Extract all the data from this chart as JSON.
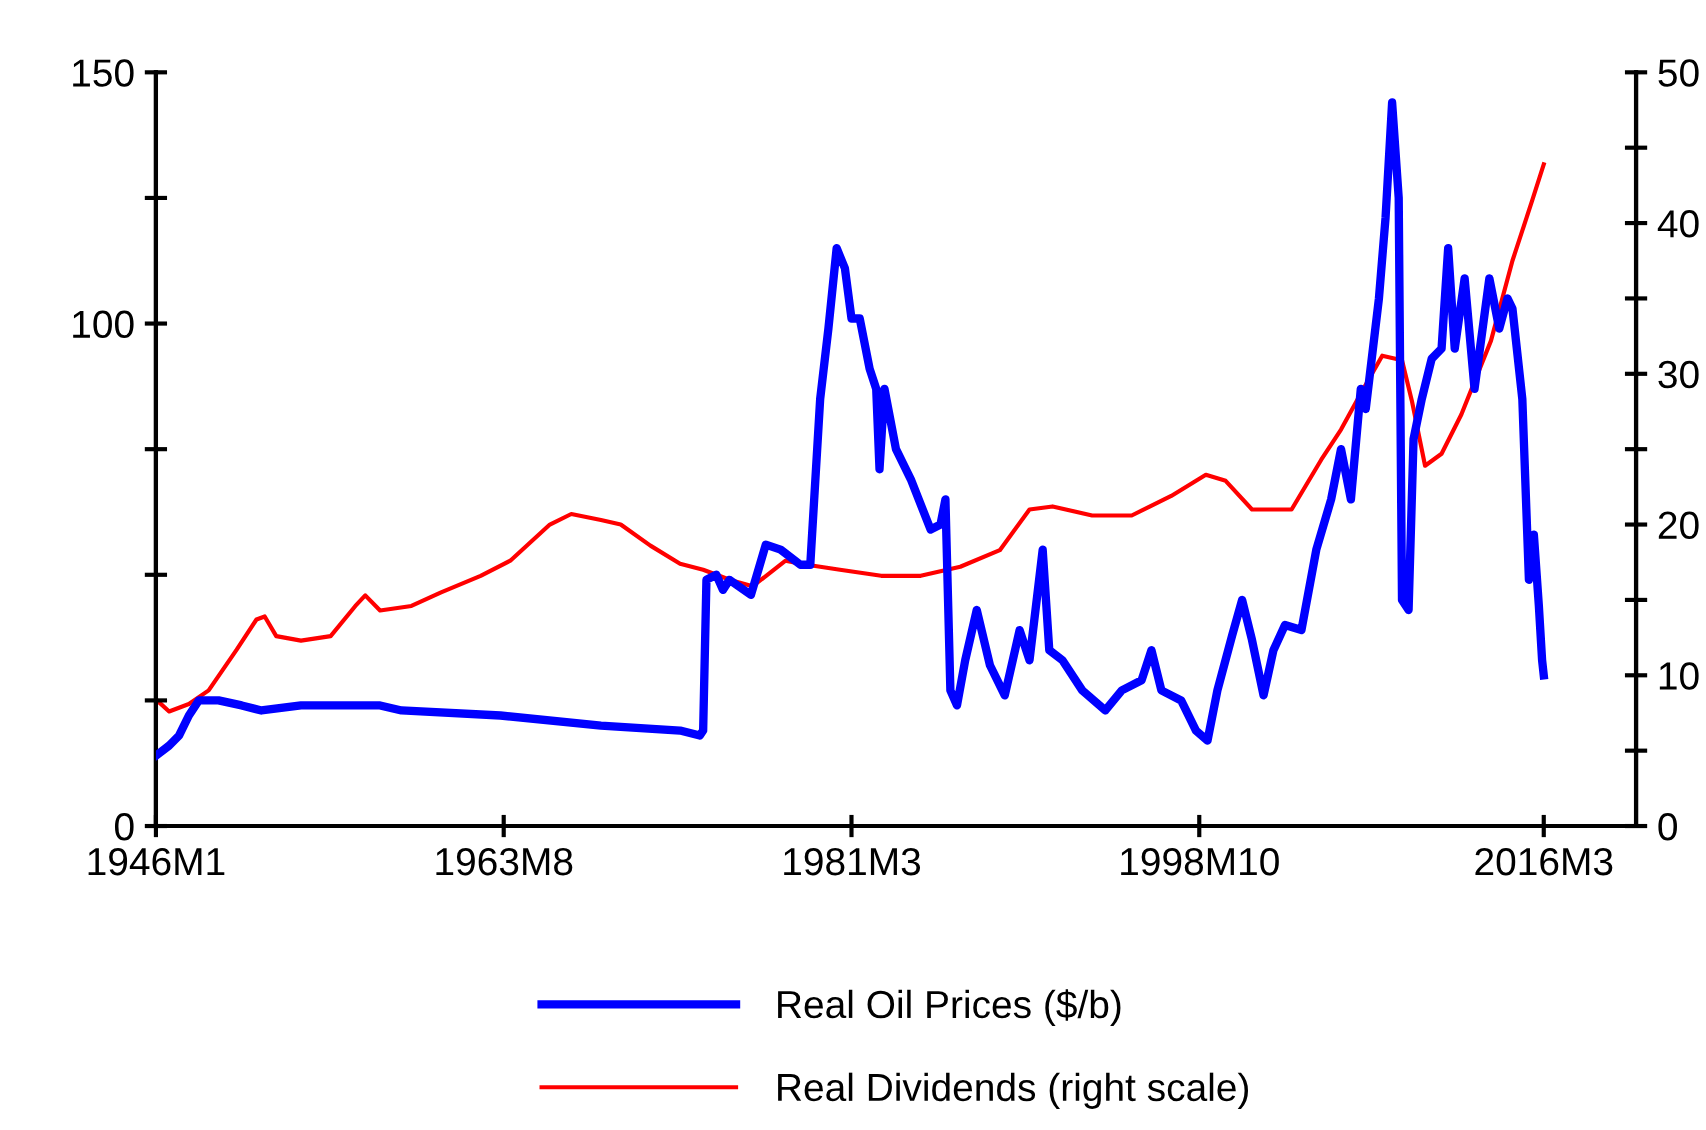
{
  "chart_data": {
    "type": "line",
    "series": [
      {
        "name": "Real Oil Prices ($/b)",
        "color": "#0000ff",
        "axis": "y",
        "x": [
          "1946-01",
          "1946-09",
          "1947-03",
          "1947-09",
          "1948-03",
          "1949-03",
          "1950-05",
          "1951-05",
          "1953-05",
          "1957-05",
          "1958-06",
          "1963-06",
          "1968-07",
          "1972-07",
          "1973-07",
          "1973-09",
          "1973-11",
          "1974-05",
          "1974-09",
          "1975-01",
          "1976-02",
          "1976-11",
          "1977-08",
          "1978-08",
          "1979-02",
          "1979-08",
          "1980-01",
          "1980-06",
          "1980-11",
          "1981-03",
          "1981-08",
          "1982-02",
          "1982-06",
          "1982-08",
          "1982-11",
          "1983-06",
          "1984-03",
          "1985-03",
          "1985-09",
          "1985-12",
          "1986-03",
          "1986-07",
          "1986-12",
          "1987-07",
          "1988-03",
          "1988-12",
          "1989-09",
          "1990-03",
          "1990-11",
          "1991-03",
          "1991-11",
          "1992-11",
          "1994-01",
          "1994-11",
          "1995-11",
          "1996-05",
          "1996-11",
          "1997-11",
          "1998-08",
          "1999-03",
          "1999-09",
          "2000-06",
          "2000-12",
          "2001-06",
          "2002-01",
          "2002-07",
          "2003-02",
          "2003-12",
          "2004-09",
          "2005-06",
          "2005-12",
          "2006-06",
          "2006-12",
          "2007-03",
          "2007-11",
          "2008-03",
          "2008-07",
          "2008-11",
          "2009-01",
          "2009-05",
          "2009-08",
          "2010-01",
          "2010-07",
          "2011-01",
          "2011-05",
          "2011-09",
          "2012-03",
          "2012-09",
          "2013-06",
          "2013-12",
          "2014-05",
          "2014-08",
          "2015-02",
          "2015-06",
          "2015-09",
          "2015-12",
          "2016-02",
          "2016-03"
        ],
        "values": [
          14,
          16,
          18,
          22,
          25,
          25,
          24,
          23,
          24,
          24,
          23,
          22,
          20,
          19,
          18,
          19,
          49,
          50,
          47,
          49,
          46,
          56,
          55,
          52,
          52,
          85,
          99,
          115,
          111,
          101,
          101,
          91,
          87,
          71,
          87,
          75,
          69,
          59,
          60,
          65,
          27,
          24,
          33,
          43,
          32,
          26,
          39,
          33,
          55,
          35,
          33,
          27,
          23,
          27,
          29,
          35,
          27,
          25,
          19,
          17,
          27,
          38,
          45,
          37,
          26,
          35,
          40,
          39,
          55,
          65,
          75,
          65,
          87,
          83,
          105,
          121,
          144,
          125,
          45,
          43,
          77,
          85,
          93,
          95,
          115,
          95,
          109,
          87,
          109,
          99,
          105,
          103,
          85,
          49,
          58,
          44,
          33,
          30
        ]
      },
      {
        "name": "Real Dividends (right scale)",
        "color": "#ff0000",
        "axis": "y2",
        "x": [
          "1946-01",
          "1946-09",
          "1947-09",
          "1948-09",
          "1950-02",
          "1951-02",
          "1951-07",
          "1952-02",
          "1953-05",
          "1954-11",
          "1956-02",
          "1956-08",
          "1957-05",
          "1958-12",
          "1960-06",
          "1962-06",
          "1963-12",
          "1965-12",
          "1967-01",
          "1968-07",
          "1969-07",
          "1971-01",
          "1972-07",
          "1973-09",
          "1975-02",
          "1976-03",
          "1977-11",
          "1978-08",
          "1980-08",
          "1982-09",
          "1984-09",
          "1986-09",
          "1988-09",
          "1990-03",
          "1991-05",
          "1993-05",
          "1995-05",
          "1997-05",
          "1999-02",
          "2000-02",
          "2001-06",
          "2003-06",
          "2004-12",
          "2005-12",
          "2007-01",
          "2008-01",
          "2009-01",
          "2009-07",
          "2010-03",
          "2011-01",
          "2012-01",
          "2013-07",
          "2014-08",
          "2015-08",
          "2016-03"
        ],
        "values": [
          8.4,
          7.6,
          8.1,
          9.0,
          11.7,
          13.7,
          13.9,
          12.6,
          12.3,
          12.6,
          14.6,
          15.3,
          14.3,
          14.6,
          15.5,
          16.6,
          17.6,
          20.0,
          20.7,
          20.3,
          20.0,
          18.6,
          17.4,
          17.0,
          16.3,
          15.9,
          17.6,
          17.4,
          17.0,
          16.6,
          16.6,
          17.2,
          18.3,
          21.0,
          21.2,
          20.6,
          20.6,
          21.9,
          23.3,
          22.9,
          21.0,
          21.0,
          24.3,
          26.3,
          28.9,
          31.2,
          30.9,
          28.2,
          23.9,
          24.7,
          27.3,
          32.2,
          37.5,
          41.5,
          43.9
        ]
      }
    ],
    "xlim": [
      "1946-01",
      "2020-11"
    ],
    "xticks": [
      {
        "value": "1946-01",
        "label": "1946M1"
      },
      {
        "value": "1963-08",
        "label": "1963M8"
      },
      {
        "value": "1981-03",
        "label": "1981M3"
      },
      {
        "value": "1998-10",
        "label": "1998M10"
      },
      {
        "value": "2016-03",
        "label": "2016M3"
      }
    ],
    "ylim": [
      0,
      150
    ],
    "yticks": [
      0,
      {
        "value": 25,
        "label": null
      },
      {
        "value": 50,
        "label": null
      },
      {
        "value": 75,
        "label": null
      },
      100,
      {
        "value": 125,
        "label": null
      },
      150
    ],
    "y2lim": [
      0,
      50
    ],
    "y2ticks": [
      0,
      {
        "value": 5,
        "label": null
      },
      10,
      {
        "value": 15,
        "label": null
      },
      20,
      {
        "value": 25,
        "label": null
      },
      30,
      {
        "value": 35,
        "label": null
      },
      40,
      {
        "value": 45,
        "label": null
      },
      50
    ],
    "legend": "bottom",
    "grid": false,
    "marker": "none",
    "line_style": "solid"
  }
}
